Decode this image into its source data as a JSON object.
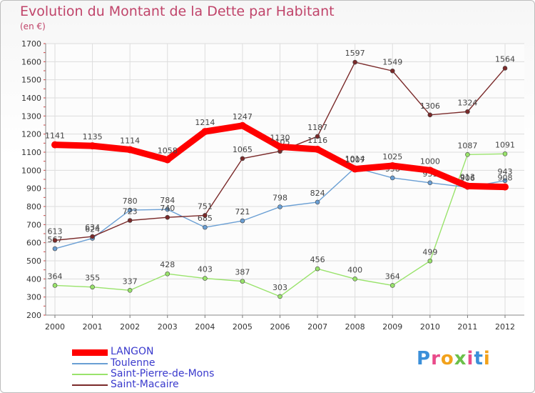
{
  "title": "Evolution du Montant de la Dette par Habitant",
  "unit": "(en €)",
  "logo": "Proxiti",
  "chart_data": {
    "type": "line",
    "x": [
      "2000",
      "2001",
      "2002",
      "2003",
      "2004",
      "2005",
      "2006",
      "2007",
      "2008",
      "2009",
      "2010",
      "2011",
      "2012"
    ],
    "ylim": [
      200,
      1700
    ],
    "yticks": [
      200,
      300,
      400,
      500,
      600,
      700,
      800,
      900,
      1000,
      1100,
      1200,
      1300,
      1400,
      1500,
      1600,
      1700
    ],
    "grid": true,
    "legend_position": "bottom-left",
    "series": [
      {
        "name": "LANGON",
        "color": "#ff0000",
        "values": [
          1141,
          1135,
          1114,
          1058,
          1214,
          1247,
          1130,
          1116,
          1007,
          1025,
          1000,
          913,
          908
        ]
      },
      {
        "name": "Toulenne",
        "color": "#6a9fd4",
        "values": [
          567,
          624,
          780,
          784,
          685,
          721,
          798,
          824,
          1014,
          958,
          931,
          906,
          943
        ]
      },
      {
        "name": "Saint-Pierre-de-Mons",
        "color": "#99e36b",
        "values": [
          364,
          355,
          337,
          428,
          403,
          387,
          303,
          456,
          400,
          364,
          499,
          1087,
          1091
        ]
      },
      {
        "name": "Saint-Macaire",
        "color": "#7a2a2a",
        "values": [
          613,
          634,
          723,
          740,
          751,
          1065,
          1105,
          1187,
          1597,
          1549,
          1306,
          1324,
          1564
        ]
      }
    ]
  }
}
